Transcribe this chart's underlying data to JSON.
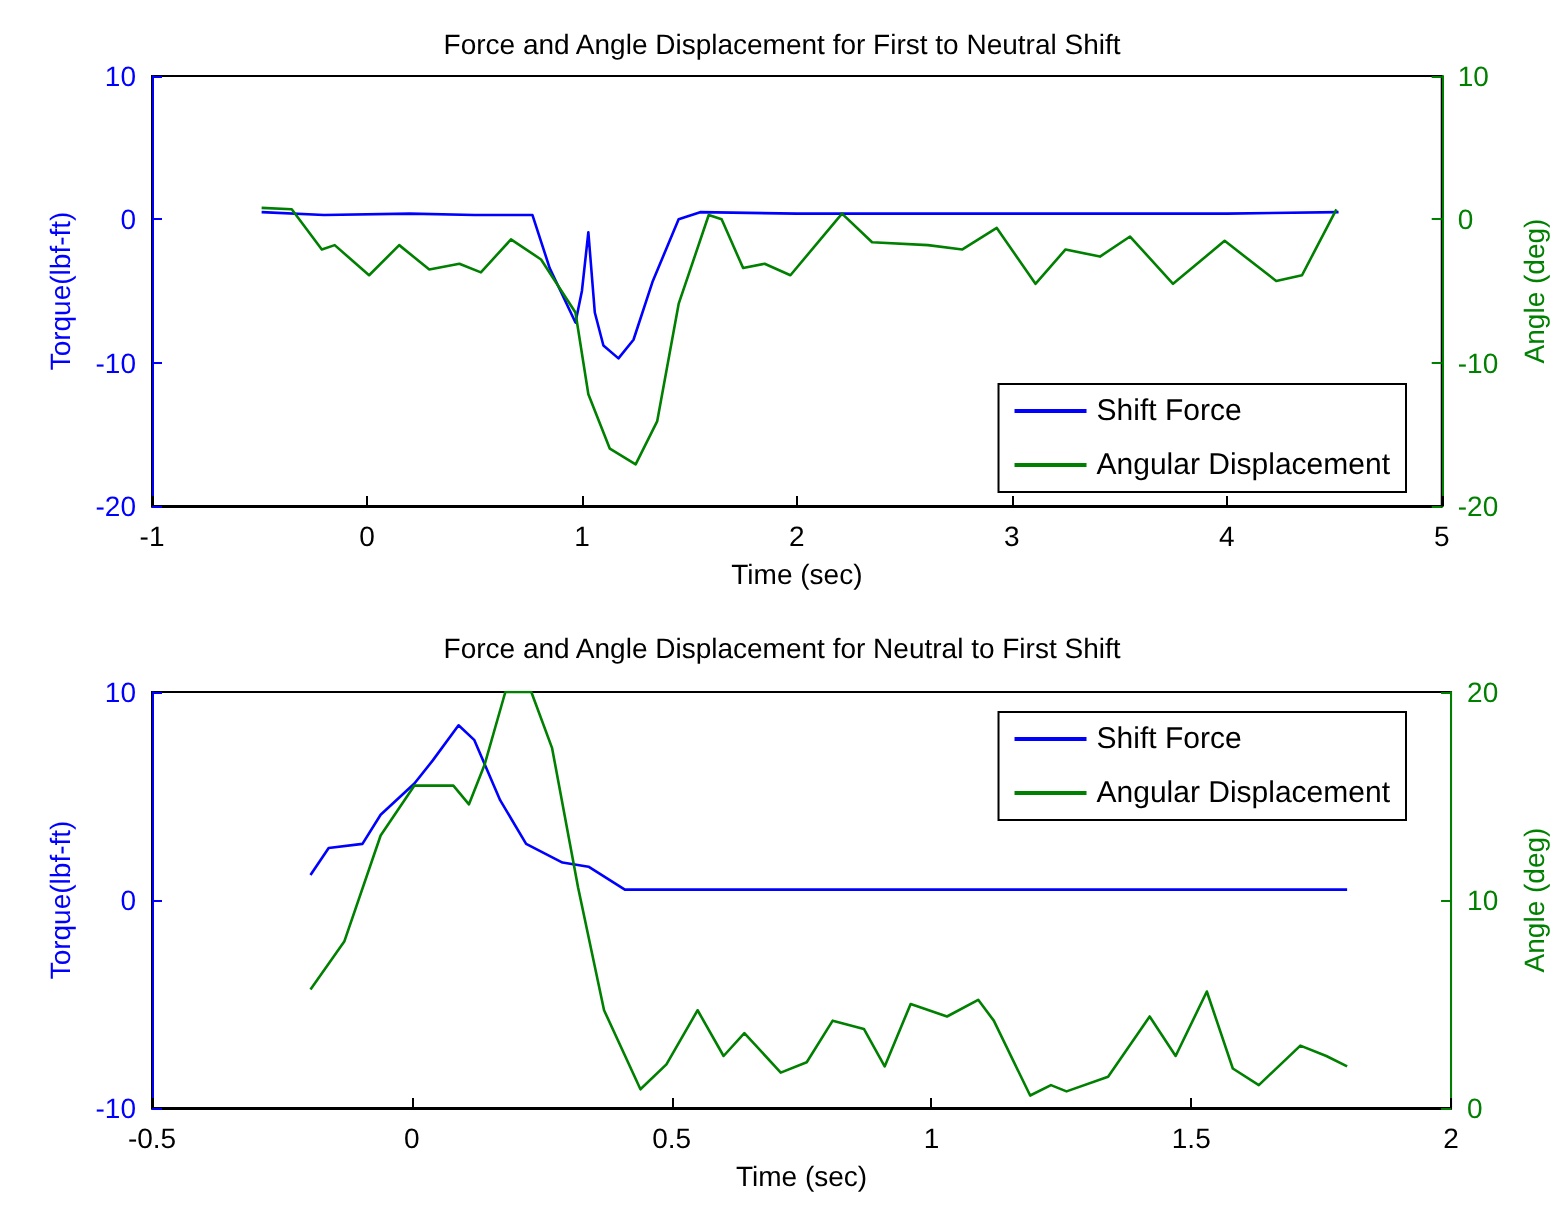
{
  "chart_data": [
    {
      "type": "line",
      "title": "Force and Angle Displacement for First to Neutral Shift",
      "xlabel": "Time (sec)",
      "ylabel": "Torque(lbf-ft)",
      "y2label": "Angle (deg)",
      "xlim": [
        -1,
        5
      ],
      "xticks": [
        -1,
        0,
        1,
        2,
        3,
        4,
        5
      ],
      "ylim": [
        -20,
        10
      ],
      "yticks": [
        -20,
        -10,
        0,
        10
      ],
      "y2lim": [
        -20,
        10
      ],
      "y2ticks": [
        -20,
        -10,
        0,
        10
      ],
      "legend": "bottom right",
      "grid": false,
      "series": [
        {
          "name": "Shift Force",
          "color": "#0000ff",
          "x": [
            -0.49,
            -0.2,
            0.2,
            0.5,
            0.77,
            0.85,
            0.97,
            1.0,
            1.03,
            1.06,
            1.1,
            1.17,
            1.24,
            1.33,
            1.45,
            1.55,
            2,
            2.5,
            3,
            3.5,
            4,
            4.52
          ],
          "values": [
            0.5,
            0.3,
            0.4,
            0.3,
            0.3,
            -3.4,
            -7.2,
            -5,
            -0.9,
            -6.5,
            -8.8,
            -9.7,
            -8.4,
            -4.3,
            0,
            0.5,
            0.4,
            0.4,
            0.4,
            0.4,
            0.4,
            0.5
          ]
        },
        {
          "name": "Angular Displacement",
          "color": "#008000",
          "axis": "y2",
          "x": [
            -0.49,
            -0.35,
            -0.21,
            -0.15,
            0.01,
            0.15,
            0.29,
            0.43,
            0.53,
            0.67,
            0.81,
            0.97,
            1.03,
            1.13,
            1.25,
            1.35,
            1.45,
            1.59,
            1.65,
            1.75,
            1.85,
            1.97,
            2.21,
            2.35,
            2.61,
            2.77,
            2.93,
            3.11,
            3.25,
            3.41,
            3.55,
            3.75,
            3.99,
            4.23,
            4.35,
            4.51
          ],
          "values": [
            0.8,
            0.7,
            -2.1,
            -1.8,
            -3.9,
            -1.8,
            -3.5,
            -3.1,
            -3.7,
            -1.4,
            -2.8,
            -6.5,
            -12.2,
            -16,
            -17.1,
            -14.1,
            -5.9,
            0.3,
            0,
            -3.4,
            -3.1,
            -3.9,
            0.4,
            -1.6,
            -1.8,
            -2.1,
            -0.6,
            -4.5,
            -2.1,
            -2.6,
            -1.2,
            -4.5,
            -1.5,
            -4.3,
            -3.9,
            0.7
          ]
        }
      ]
    },
    {
      "type": "line",
      "title": "Force and Angle Displacement for Neutral to First Shift",
      "xlabel": "Time (sec)",
      "ylabel": "Torque(lbf-ft)",
      "y2label": "Angle (deg)",
      "xlim": [
        -0.5,
        2
      ],
      "xticks": [
        -0.5,
        0,
        0.5,
        1,
        1.5,
        2
      ],
      "ylim": [
        -10,
        10
      ],
      "yticks": [
        -10,
        0,
        10
      ],
      "y2lim": [
        0,
        20
      ],
      "y2ticks": [
        0,
        10,
        20
      ],
      "legend": "top right",
      "grid": false,
      "series": [
        {
          "name": "Shift Force",
          "color": "#0000ff",
          "x": [
            -0.195,
            -0.16,
            -0.095,
            -0.06,
            0.005,
            0.04,
            0.09,
            0.12,
            0.17,
            0.22,
            0.29,
            0.34,
            0.41,
            0.6,
            0.8,
            1.0,
            1.2,
            1.4,
            1.6,
            1.8
          ],
          "values": [
            1.2,
            2.5,
            2.7,
            4.1,
            5.6,
            6.7,
            8.4,
            7.7,
            4.8,
            2.7,
            1.8,
            1.6,
            0.5,
            0.5,
            0.5,
            0.5,
            0.5,
            0.5,
            0.5,
            0.5
          ]
        },
        {
          "name": "Angular Displacement",
          "color": "#008000",
          "axis": "y2",
          "x": [
            -0.195,
            -0.13,
            -0.06,
            0.005,
            0.08,
            0.11,
            0.14,
            0.18,
            0.23,
            0.27,
            0.32,
            0.37,
            0.44,
            0.49,
            0.55,
            0.6,
            0.64,
            0.71,
            0.76,
            0.81,
            0.87,
            0.91,
            0.96,
            1.03,
            1.09,
            1.12,
            1.19,
            1.23,
            1.26,
            1.34,
            1.42,
            1.47,
            1.53,
            1.58,
            1.63,
            1.71,
            1.76,
            1.8
          ],
          "values": [
            5.7,
            8.0,
            13.1,
            15.5,
            15.5,
            14.6,
            16.5,
            20,
            20,
            17.3,
            10.6,
            4.7,
            0.9,
            2.1,
            4.7,
            2.5,
            3.6,
            1.7,
            2.2,
            4.2,
            3.8,
            2.0,
            5.0,
            4.4,
            5.2,
            4.2,
            0.6,
            1.1,
            0.8,
            1.5,
            4.4,
            2.5,
            5.6,
            1.9,
            1.1,
            3.0,
            2.5,
            2.0
          ]
        }
      ]
    }
  ]
}
